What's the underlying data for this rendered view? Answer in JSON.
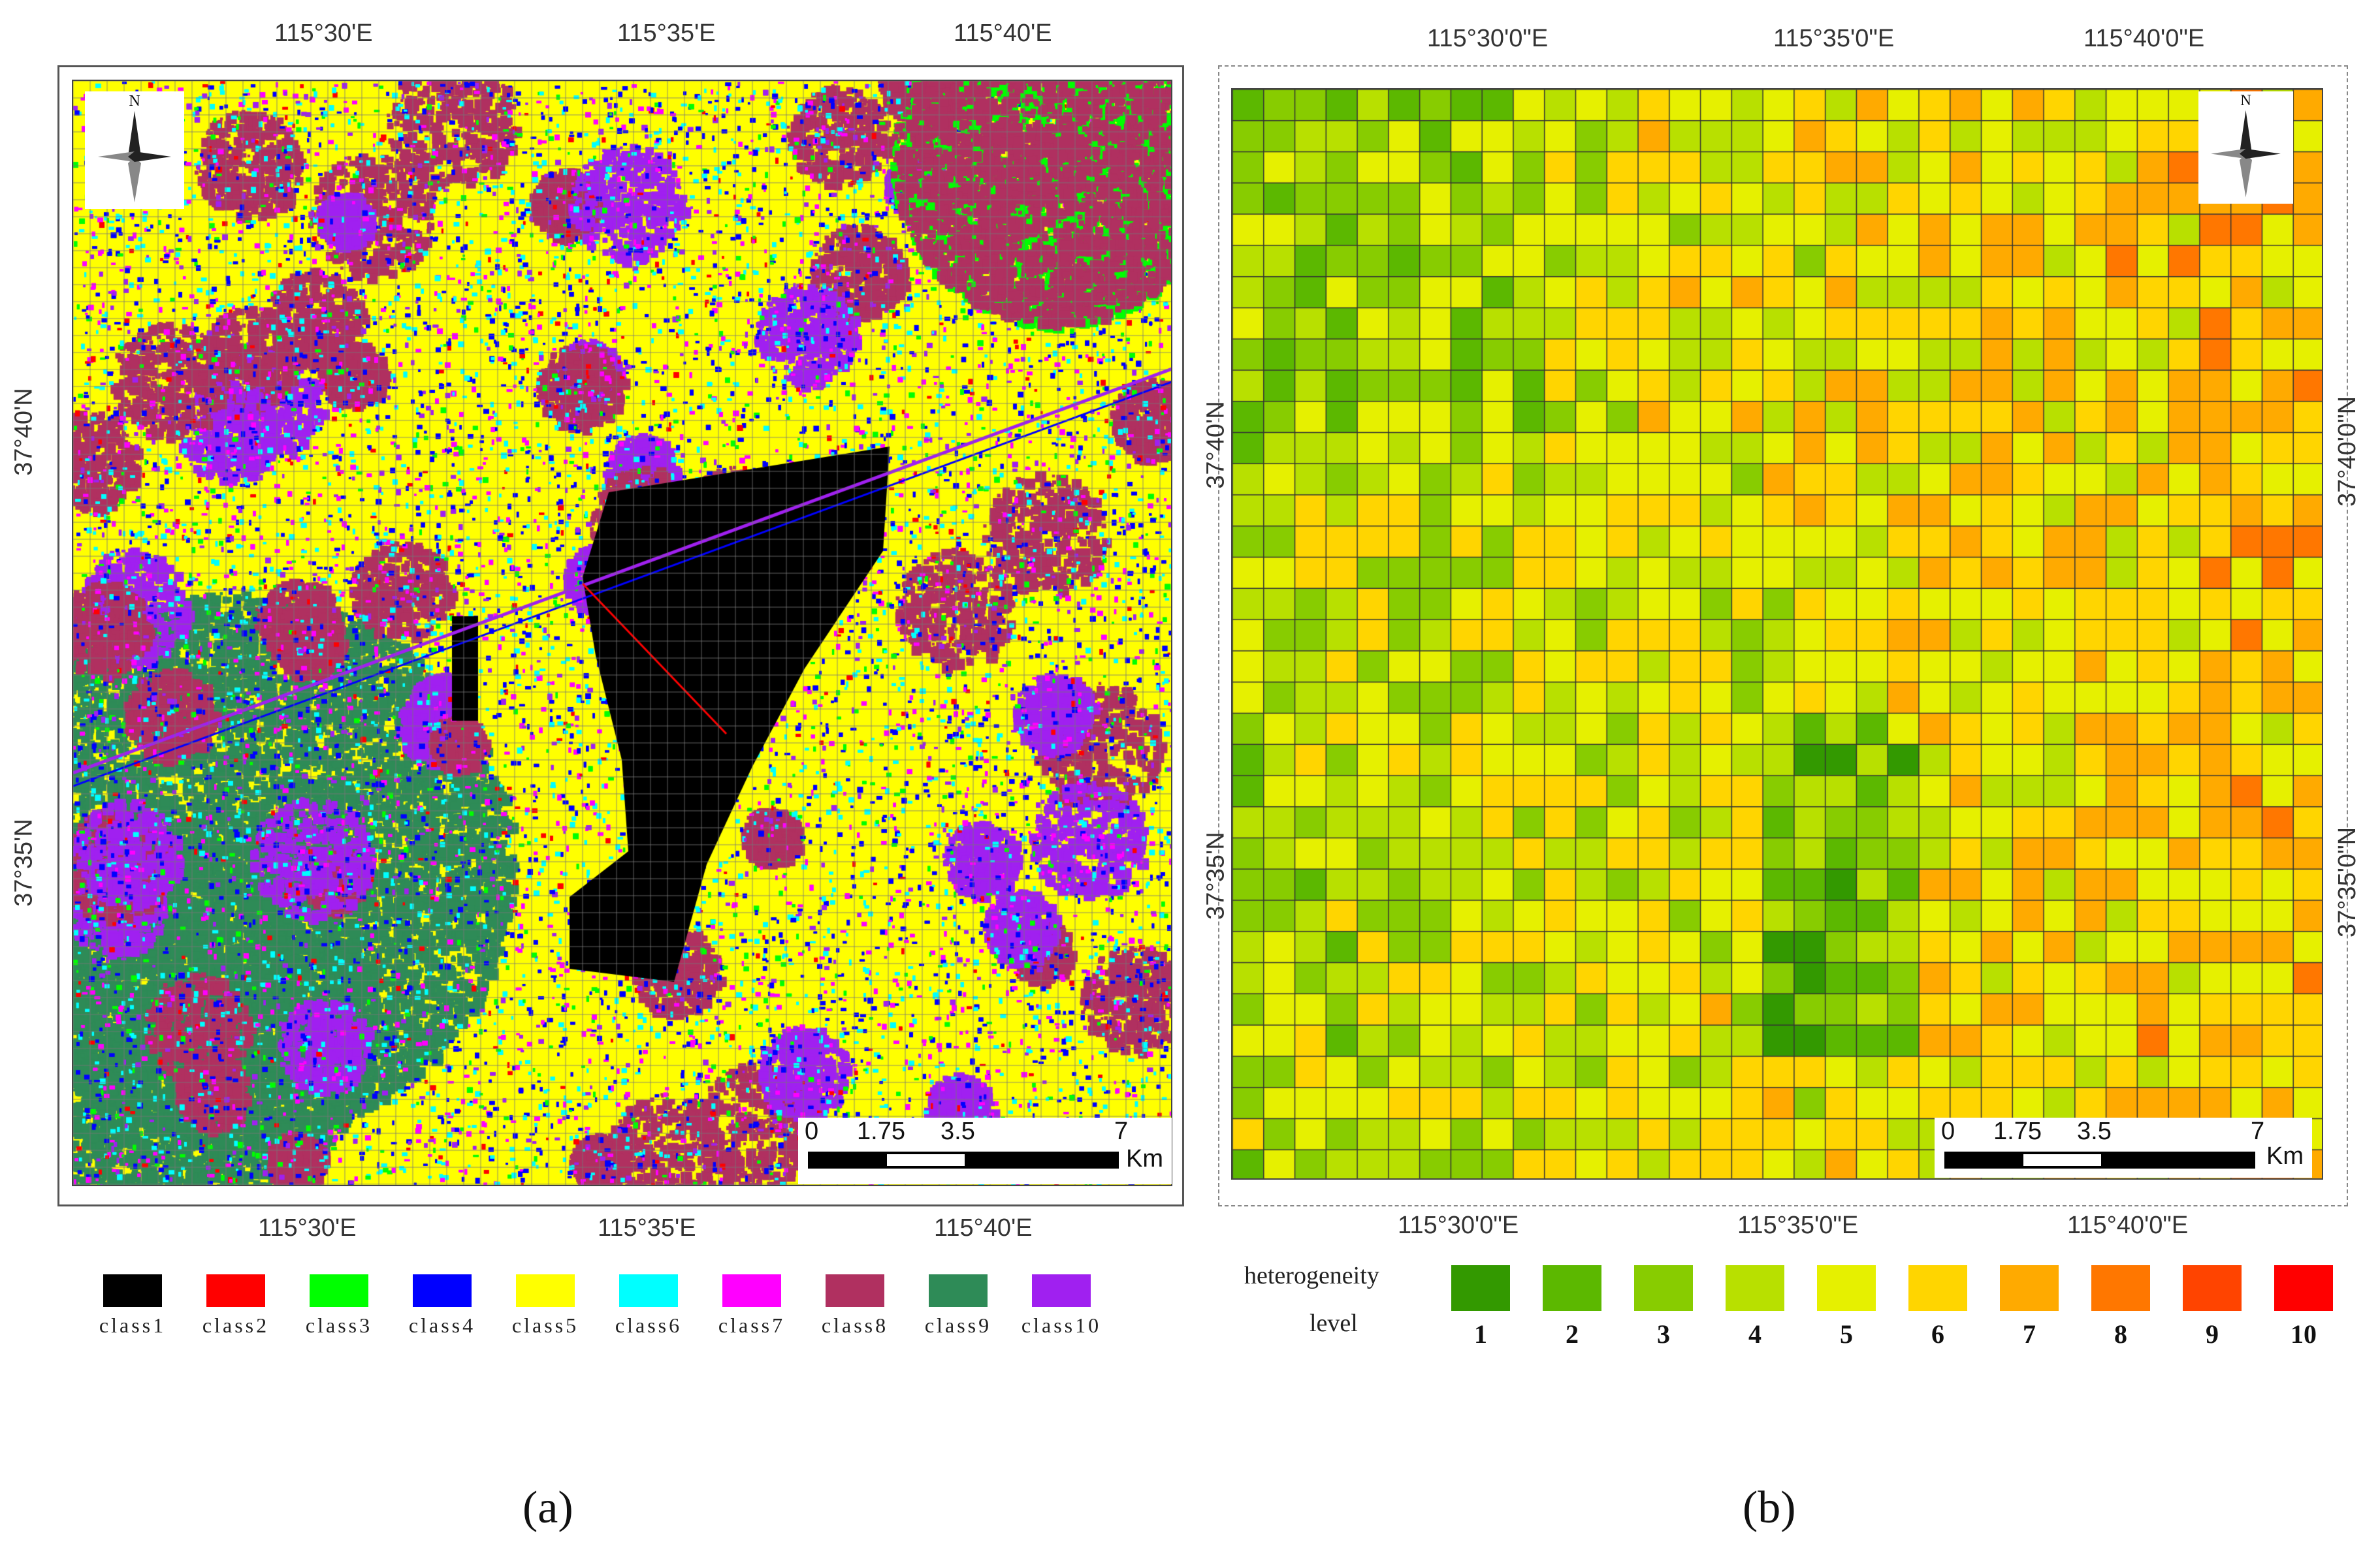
{
  "panel_a": {
    "label": "(a)",
    "top_ticks": [
      "115°30'E",
      "115°35'E",
      "115°40'E"
    ],
    "bottom_ticks": [
      "115°30'E",
      "115°35'E",
      "115°40'E"
    ],
    "left_ticks": [
      "37°40'N",
      "37°35'N"
    ],
    "scale_labels": [
      "0",
      "1.75",
      "3.5",
      "7"
    ],
    "scale_unit": "Km",
    "north_label": "N",
    "legend": [
      {
        "label": "class1",
        "color": "#000000"
      },
      {
        "label": "class2",
        "color": "#ff0000"
      },
      {
        "label": "class3",
        "color": "#00ff00"
      },
      {
        "label": "class4",
        "color": "#0000ff"
      },
      {
        "label": "class5",
        "color": "#ffff00"
      },
      {
        "label": "class6",
        "color": "#00ffff"
      },
      {
        "label": "class7",
        "color": "#ff00ff"
      },
      {
        "label": "class8",
        "color": "#b03060"
      },
      {
        "label": "class9",
        "color": "#2e8b57"
      },
      {
        "label": "class10",
        "color": "#a020f0"
      }
    ]
  },
  "panel_b": {
    "label": "(b)",
    "top_ticks": [
      "115°30'0\"E",
      "115°35'0\"E",
      "115°40'0\"E"
    ],
    "bottom_ticks": [
      "115°30'0\"E",
      "115°35'0\"E",
      "115°40'0\"E"
    ],
    "left_ticks": [
      "37°40'N",
      "37°35'N"
    ],
    "right_ticks": [
      "37°40'0\"N",
      "37°35'0\"N"
    ],
    "scale_labels": [
      "0",
      "1.75",
      "3.5",
      "7"
    ],
    "scale_unit": "Km",
    "north_label": "N",
    "legend_title_line1": "heterogeneity",
    "legend_title_line2": "level",
    "legend": [
      {
        "label": "1",
        "color": "#339900"
      },
      {
        "label": "2",
        "color": "#5cb800"
      },
      {
        "label": "3",
        "color": "#88cc00"
      },
      {
        "label": "4",
        "color": "#b8e000"
      },
      {
        "label": "5",
        "color": "#e6f000"
      },
      {
        "label": "6",
        "color": "#ffd500"
      },
      {
        "label": "7",
        "color": "#ffaa00"
      },
      {
        "label": "8",
        "color": "#ff7700"
      },
      {
        "label": "9",
        "color": "#ff4400"
      },
      {
        "label": "10",
        "color": "#ff0000"
      }
    ]
  }
}
